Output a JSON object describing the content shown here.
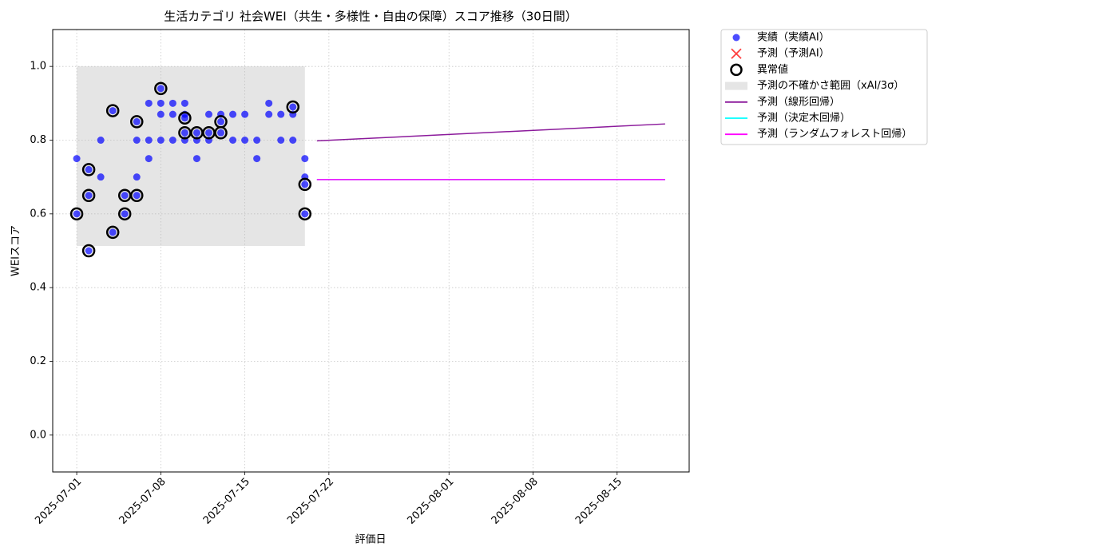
{
  "chart_data": {
    "type": "scatter",
    "title": "生活カテゴリ 社会WEI（共生・多様性・自由の保障）スコア推移（30日間）",
    "x_label": "評価日",
    "y_label": "WEIスコア",
    "xlim": [
      "2025-06-29",
      "2025-08-21"
    ],
    "xticks": [
      "2025-07-01",
      "2025-07-08",
      "2025-07-15",
      "2025-07-22",
      "2025-08-01",
      "2025-08-08",
      "2025-08-15"
    ],
    "ylim": [
      -0.1,
      1.1
    ],
    "yticks": [
      {
        "value": 0,
        "label": "0.0"
      },
      0.2,
      0.4,
      0.6,
      0.8,
      {
        "value": 1,
        "label": "1.0"
      }
    ],
    "grid": true,
    "legend": "outside-upper-right",
    "series": [
      {
        "name": "実績（実績AI）",
        "kind": "scatter",
        "color": "#0000ff",
        "x": [
          "2025-07-01",
          "2025-07-01",
          "2025-07-02",
          "2025-07-02",
          "2025-07-02",
          "2025-07-03",
          "2025-07-03",
          "2025-07-04",
          "2025-07-04",
          "2025-07-05",
          "2025-07-05",
          "2025-07-06",
          "2025-07-06",
          "2025-07-06",
          "2025-07-06",
          "2025-07-07",
          "2025-07-07",
          "2025-07-07",
          "2025-07-08",
          "2025-07-08",
          "2025-07-08",
          "2025-07-08",
          "2025-07-09",
          "2025-07-09",
          "2025-07-09",
          "2025-07-10",
          "2025-07-10",
          "2025-07-10",
          "2025-07-10",
          "2025-07-10",
          "2025-07-11",
          "2025-07-11",
          "2025-07-11",
          "2025-07-12",
          "2025-07-12",
          "2025-07-12",
          "2025-07-13",
          "2025-07-13",
          "2025-07-13",
          "2025-07-14",
          "2025-07-14",
          "2025-07-15",
          "2025-07-15",
          "2025-07-16",
          "2025-07-16",
          "2025-07-17",
          "2025-07-17",
          "2025-07-18",
          "2025-07-18",
          "2025-07-19",
          "2025-07-19",
          "2025-07-19",
          "2025-07-20",
          "2025-07-20",
          "2025-07-20",
          "2025-07-20"
        ],
        "values": [
          0.75,
          0.6,
          0.65,
          0.72,
          0.5,
          0.7,
          0.8,
          0.88,
          0.55,
          0.65,
          0.6,
          0.7,
          0.65,
          0.85,
          0.8,
          0.75,
          0.9,
          0.8,
          0.87,
          0.8,
          0.9,
          0.94,
          0.8,
          0.9,
          0.87,
          0.9,
          0.87,
          0.86,
          0.82,
          0.8,
          0.75,
          0.82,
          0.8,
          0.82,
          0.8,
          0.87,
          0.87,
          0.85,
          0.82,
          0.87,
          0.8,
          0.87,
          0.8,
          0.8,
          0.75,
          0.9,
          0.87,
          0.87,
          0.8,
          0.89,
          0.87,
          0.8,
          0.75,
          0.7,
          0.68,
          0.6
        ]
      },
      {
        "name": "予測（予測AI）",
        "kind": "cross",
        "color": "#ff0000",
        "x": [],
        "values": []
      },
      {
        "name": "異常値",
        "kind": "ring",
        "color": "#000000",
        "x": [
          "2025-07-01",
          "2025-07-02",
          "2025-07-02",
          "2025-07-02",
          "2025-07-04",
          "2025-07-04",
          "2025-07-05",
          "2025-07-05",
          "2025-07-06",
          "2025-07-06",
          "2025-07-08",
          "2025-07-10",
          "2025-07-10",
          "2025-07-11",
          "2025-07-12",
          "2025-07-13",
          "2025-07-13",
          "2025-07-19",
          "2025-07-20",
          "2025-07-20"
        ],
        "values": [
          0.6,
          0.65,
          0.72,
          0.5,
          0.88,
          0.55,
          0.65,
          0.6,
          0.65,
          0.85,
          0.94,
          0.86,
          0.82,
          0.82,
          0.82,
          0.85,
          0.82,
          0.89,
          0.68,
          0.6
        ]
      },
      {
        "name": "予測の不確かさ範囲（xAI/3σ）",
        "kind": "band",
        "color": "#b4b4b4",
        "x": [
          "2025-07-01",
          "2025-07-20"
        ],
        "low": [
          0.513,
          0.513
        ],
        "high": [
          1.0,
          1.0
        ]
      },
      {
        "name": "予測（線形回帰）",
        "kind": "line",
        "color": "#8b1a9b",
        "x": [
          "2025-07-21",
          "2025-08-19"
        ],
        "values": [
          0.798,
          0.844
        ]
      },
      {
        "name": "予測（決定木回帰）",
        "kind": "line",
        "color": "#00ffff",
        "x": [
          "2025-07-21",
          "2025-08-19"
        ],
        "values": [
          0.693,
          0.693
        ]
      },
      {
        "name": "予測（ランダムフォレスト回帰）",
        "kind": "line",
        "color": "#ff00ff",
        "x": [
          "2025-07-21",
          "2025-08-19"
        ],
        "values": [
          0.693,
          0.693
        ]
      }
    ]
  }
}
